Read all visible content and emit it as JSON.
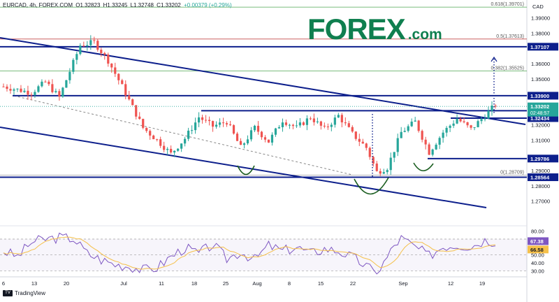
{
  "header": {
    "symbol": "EURCAD, 4h, FOREX.COM",
    "open": "O1.32823",
    "high": "H1.33245",
    "low": "L1.32748",
    "close": "C1.33202",
    "change": "+0.00379 (+0.29%)"
  },
  "logo": {
    "main": "FOREX",
    "suffix": ".com"
  },
  "currency_label": "CAD",
  "footer": {
    "brand": "TradingView",
    "mark": "TV"
  },
  "colors": {
    "up": "#26a69a",
    "down": "#ef5350",
    "navy": "#0d1f8c",
    "fib": "#c0c0c0",
    "rsi": "#7e57c2",
    "rsi_ma": "#f5c04a",
    "logo": "#0f7f4f",
    "green_pattern": "#1b5e20"
  },
  "chart_data": {
    "type": "candlestick",
    "timeframe": "4h",
    "ylim": [
      1.263,
      1.398
    ],
    "y_ticks": [
      "1.39000",
      "1.38000",
      "1.37000",
      "1.36000",
      "1.35000",
      "1.34000",
      "1.33000",
      "1.32000",
      "1.31000",
      "1.30000",
      "1.29000",
      "1.28000",
      "1.27000"
    ],
    "x_ticks": [
      "6",
      "13",
      "20",
      "Jul",
      "11",
      "18",
      "25",
      "Aug",
      "8",
      "15",
      "22",
      "Sep",
      "12",
      "19"
    ],
    "fib_levels": [
      {
        "label": "0.618(1.39701)",
        "value": 1.39701
      },
      {
        "label": "0.5(1.37613)",
        "value": 1.37613
      },
      {
        "label": "0.382(1.35525)",
        "value": 1.35525
      },
      {
        "label": "0(1.28709)",
        "value": 1.28709
      }
    ],
    "horizontal_levels": [
      {
        "label": "1.37107",
        "value": 1.37107
      },
      {
        "label": "1.33900",
        "value": 1.339
      },
      {
        "label": "1.32918",
        "value": 1.32918
      },
      {
        "label": "1.32434",
        "value": 1.32434
      },
      {
        "label": "1.29786",
        "value": 1.29786
      },
      {
        "label": "1.28564",
        "value": 1.28564
      }
    ],
    "last_price": {
      "label": "1.33202",
      "countdown": "02:48:57",
      "value": 1.33202
    },
    "path": [
      [
        0,
        1.345
      ],
      [
        8,
        1.341
      ],
      [
        12,
        1.348
      ],
      [
        16,
        1.338
      ],
      [
        22,
        1.372
      ],
      [
        26,
        1.374
      ],
      [
        30,
        1.362
      ],
      [
        34,
        1.345
      ],
      [
        40,
        1.318
      ],
      [
        44,
        1.31
      ],
      [
        48,
        1.301
      ],
      [
        52,
        1.311
      ],
      [
        56,
        1.325
      ],
      [
        60,
        1.319
      ],
      [
        64,
        1.322
      ],
      [
        68,
        1.305
      ],
      [
        72,
        1.318
      ],
      [
        76,
        1.309
      ],
      [
        80,
        1.323
      ],
      [
        84,
        1.318
      ],
      [
        88,
        1.325
      ],
      [
        92,
        1.317
      ],
      [
        96,
        1.326
      ],
      [
        100,
        1.314
      ],
      [
        104,
        1.305
      ],
      [
        107,
        1.289
      ],
      [
        110,
        1.292
      ],
      [
        114,
        1.315
      ],
      [
        118,
        1.322
      ],
      [
        122,
        1.302
      ],
      [
        126,
        1.315
      ],
      [
        130,
        1.324
      ],
      [
        134,
        1.317
      ],
      [
        138,
        1.326
      ],
      [
        141,
        1.333
      ]
    ],
    "rsi": {
      "levels": [
        80,
        70,
        60,
        50,
        40,
        30
      ],
      "last": "67.38",
      "ma_last": "66.58",
      "path": [
        [
          0,
          55
        ],
        [
          4,
          48
        ],
        [
          8,
          66
        ],
        [
          12,
          70
        ],
        [
          16,
          72
        ],
        [
          20,
          71
        ],
        [
          24,
          52
        ],
        [
          28,
          44
        ],
        [
          32,
          38
        ],
        [
          36,
          36
        ],
        [
          40,
          31
        ],
        [
          44,
          34
        ],
        [
          48,
          48
        ],
        [
          52,
          59
        ],
        [
          56,
          52
        ],
        [
          60,
          63
        ],
        [
          64,
          45
        ],
        [
          68,
          54
        ],
        [
          72,
          44
        ],
        [
          76,
          62
        ],
        [
          80,
          55
        ],
        [
          84,
          60
        ],
        [
          88,
          52
        ],
        [
          92,
          58
        ],
        [
          96,
          55
        ],
        [
          100,
          47
        ],
        [
          104,
          36
        ],
        [
          106,
          29
        ],
        [
          108,
          33
        ],
        [
          110,
          47
        ],
        [
          112,
          62
        ],
        [
          114,
          71
        ],
        [
          118,
          60
        ],
        [
          122,
          49
        ],
        [
          126,
          61
        ],
        [
          130,
          63
        ],
        [
          134,
          61
        ],
        [
          138,
          69
        ],
        [
          141,
          67
        ]
      ]
    }
  }
}
